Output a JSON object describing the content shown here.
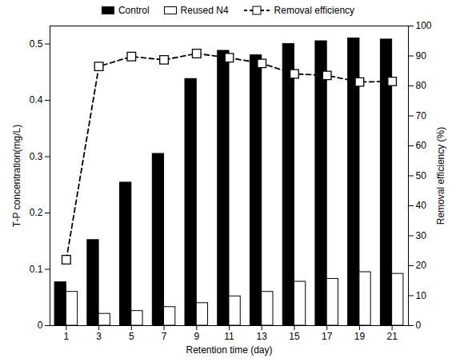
{
  "chart_data": {
    "type": "bar",
    "x_label": "Retention time (day)",
    "y_label": "T-P concentration(mg/L)",
    "y2_label": "Removal efficiency (%)",
    "categories": [
      "1",
      "3",
      "5",
      "7",
      "9",
      "11",
      "13",
      "15",
      "17",
      "19",
      "21"
    ],
    "series": [
      {
        "name": "Control",
        "color": "#000000",
        "values": [
          0.077,
          0.152,
          0.254,
          0.305,
          0.438,
          0.488,
          0.48,
          0.5,
          0.505,
          0.51,
          0.508
        ]
      },
      {
        "name": "Reused N4",
        "color": "#ffffff",
        "values": [
          0.06,
          0.021,
          0.026,
          0.033,
          0.04,
          0.052,
          0.06,
          0.078,
          0.083,
          0.095,
          0.092
        ]
      },
      {
        "name": "Removal efficiency",
        "type": "line",
        "axis": "y2",
        "color": "#000000",
        "marker": "square",
        "line_style": "dashed",
        "values": [
          22,
          86.5,
          89.8,
          88.7,
          90.8,
          89.4,
          87.5,
          84,
          83.5,
          81.3,
          81.5
        ]
      }
    ],
    "ylim": [
      0,
      0.532
    ],
    "yticks": [
      0,
      0.1,
      0.2,
      0.3,
      0.4,
      0.5
    ],
    "y2lim": [
      0,
      100
    ],
    "y2ticks": [
      0,
      10,
      20,
      30,
      40,
      50,
      60,
      70,
      80,
      90,
      100
    ],
    "legend": "top"
  }
}
